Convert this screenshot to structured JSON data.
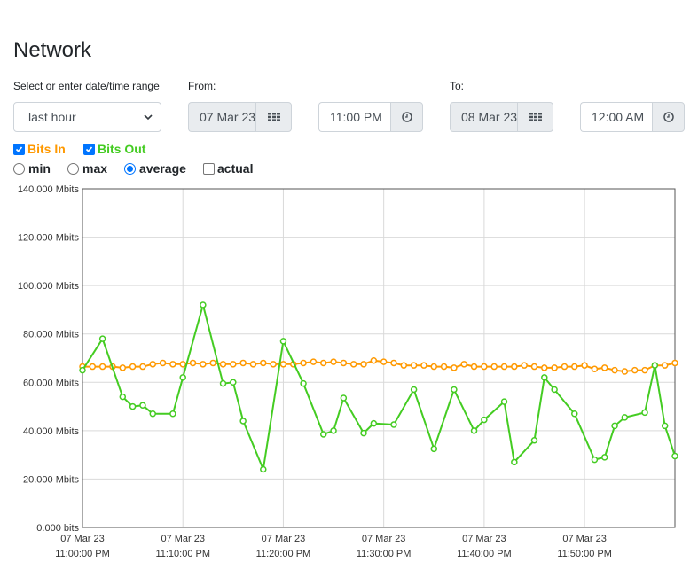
{
  "page": {
    "title": "Network"
  },
  "range": {
    "label": "Select or enter date/time range",
    "selected": "last hour"
  },
  "from": {
    "label": "From:",
    "date": "07 Mar 23",
    "time": "11:00 PM"
  },
  "to": {
    "label": "To:",
    "date": "08 Mar 23",
    "time": "12:00 AM"
  },
  "series_toggles": {
    "bits_in": {
      "label": "Bits In",
      "checked": true,
      "color": "#ff9900"
    },
    "bits_out": {
      "label": "Bits Out",
      "checked": true,
      "color": "#44cc22"
    }
  },
  "options": [
    {
      "label": "min",
      "type": "radio",
      "checked": false
    },
    {
      "label": "max",
      "type": "radio",
      "checked": false
    },
    {
      "label": "average",
      "type": "radio",
      "checked": true
    },
    {
      "label": "actual",
      "type": "checkbox",
      "checked": false
    }
  ],
  "icons": {
    "calendar": "calendar-grid-icon",
    "time": "clock-icon"
  },
  "chart_data": {
    "type": "line",
    "ylim": [
      0,
      140
    ],
    "ytick_values": [
      0,
      20,
      40,
      60,
      80,
      100,
      120,
      140
    ],
    "ytick_labels": [
      "0.000 bits",
      "20.000 Mbits",
      "40.000 Mbits",
      "60.000 Mbits",
      "80.000 Mbits",
      "100.000 Mbits",
      "120.000 Mbits",
      "140.000 Mbits"
    ],
    "xlim": [
      0,
      59
    ],
    "xtick_values": [
      0,
      10,
      20,
      30,
      40,
      50
    ],
    "xtick_labels": [
      [
        "07 Mar 23",
        "11:00:00 PM"
      ],
      [
        "07 Mar 23",
        "11:10:00 PM"
      ],
      [
        "07 Mar 23",
        "11:20:00 PM"
      ],
      [
        "07 Mar 23",
        "11:30:00 PM"
      ],
      [
        "07 Mar 23",
        "11:40:00 PM"
      ],
      [
        "07 Mar 23",
        "11:50:00 PM"
      ]
    ],
    "grid": true,
    "series": [
      {
        "name": "Bits In",
        "color": "#ff9900",
        "x": [
          0,
          1,
          2,
          3,
          4,
          5,
          6,
          7,
          8,
          9,
          10,
          11,
          12,
          13,
          14,
          15,
          16,
          17,
          18,
          19,
          20,
          21,
          22,
          23,
          24,
          25,
          26,
          27,
          28,
          29,
          30,
          31,
          32,
          33,
          34,
          35,
          36,
          37,
          38,
          39,
          40,
          41,
          42,
          43,
          44,
          45,
          46,
          47,
          48,
          49,
          50,
          51,
          52,
          53,
          54,
          55,
          56,
          57,
          58,
          59
        ],
        "values": [
          66.5,
          66.5,
          66.5,
          66.5,
          66,
          66.5,
          66.5,
          67.5,
          68,
          67.5,
          67.5,
          68,
          67.5,
          68,
          67.5,
          67.5,
          68,
          67.5,
          68,
          67.5,
          67.5,
          67.5,
          68,
          68.5,
          68,
          68.5,
          68,
          67.5,
          67.5,
          69,
          68.5,
          68,
          67,
          67,
          67,
          66.5,
          66.5,
          66,
          67.5,
          66.5,
          66.5,
          66.5,
          66.5,
          66.5,
          67,
          66.5,
          66,
          66,
          66.5,
          66.5,
          67,
          65.5,
          66,
          65,
          64.5,
          65,
          65,
          67,
          67,
          68
        ]
      },
      {
        "name": "Bits Out",
        "color": "#44cc22",
        "x": [
          0,
          2,
          4,
          5,
          6,
          7,
          9,
          10,
          12,
          14,
          15,
          16,
          18,
          20,
          22,
          24,
          25,
          26,
          28,
          29,
          31,
          33,
          35,
          37,
          39,
          40,
          42,
          43,
          45,
          46,
          47,
          49,
          51,
          52,
          53,
          54,
          56,
          57,
          58,
          59
        ],
        "values": [
          65,
          78,
          54,
          50,
          50.5,
          47,
          47,
          62,
          92,
          59.5,
          60,
          44,
          24,
          77,
          59.5,
          38.5,
          40,
          53.5,
          39,
          43,
          42.5,
          57,
          32.5,
          57,
          40,
          44.5,
          52,
          27,
          36,
          62,
          57,
          47,
          28,
          29,
          42,
          45.5,
          47.5,
          67,
          42,
          29.5
        ]
      }
    ]
  }
}
